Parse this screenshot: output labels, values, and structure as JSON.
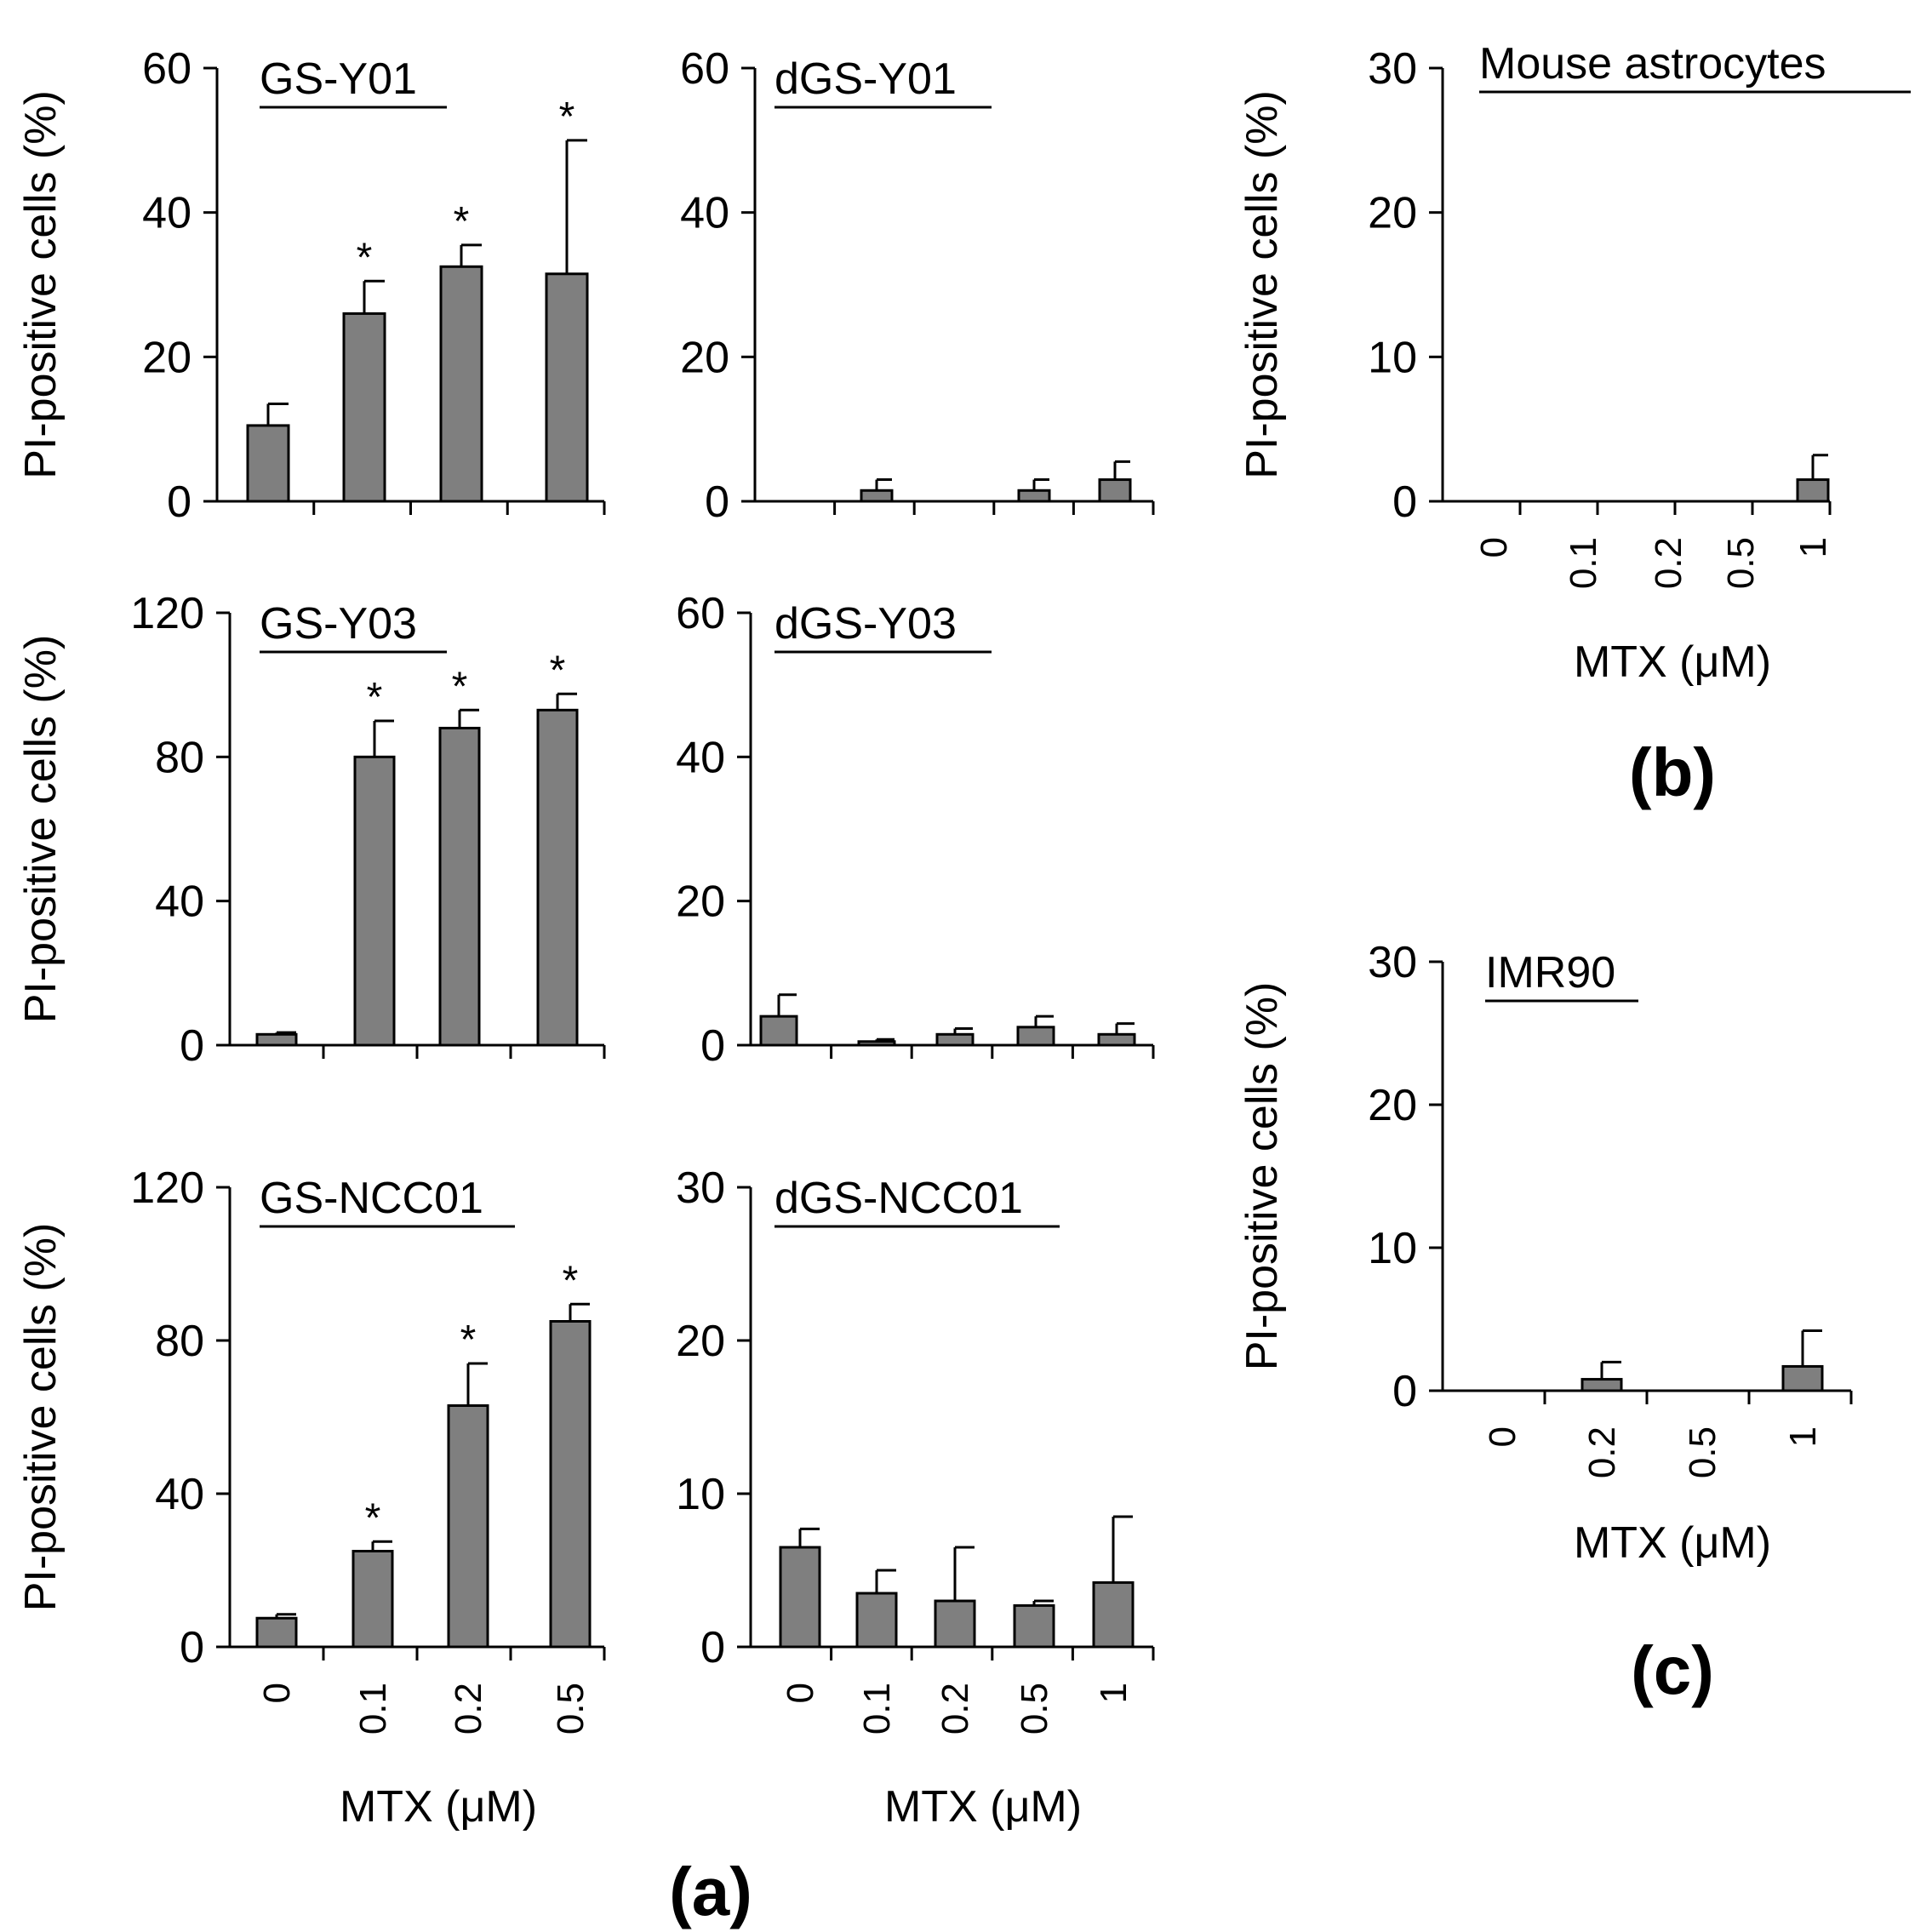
{
  "figure": {
    "panel_labels": {
      "a": "(a)",
      "b": "(b)",
      "c": "(c)"
    },
    "ylabel": "PI-positive cells (%)",
    "xlabel": "MTX  (μM)"
  },
  "colors": {
    "bar": "#7f7f7f",
    "axis": "#000000",
    "background": "#ffffff"
  },
  "chart_data": [
    {
      "id": "gs-y01",
      "type": "bar",
      "title": "GS-Y01",
      "ylabel": "PI-positive cells (%)",
      "xlabel": "",
      "categories": [
        "0",
        "0.1",
        "0.2",
        "0.5"
      ],
      "ylim": [
        0,
        60
      ],
      "yticks": [
        0,
        20,
        40,
        60
      ],
      "values": [
        10.5,
        26,
        32.5,
        31.5
      ],
      "errors": [
        3,
        4.5,
        3,
        18.5
      ],
      "significant": [
        false,
        true,
        true,
        true
      ],
      "annotation": "*"
    },
    {
      "id": "dgs-y01",
      "type": "bar",
      "title": "dGS-Y01",
      "ylabel": "",
      "xlabel": "",
      "categories": [
        "0",
        "0.1",
        "0.2",
        "0.5",
        "1"
      ],
      "ylim": [
        0,
        60
      ],
      "yticks": [
        0,
        20,
        40,
        60
      ],
      "values": [
        0,
        1.5,
        0,
        1.5,
        3
      ],
      "errors": [
        0,
        1.5,
        0,
        1.5,
        2.5
      ],
      "significant": [
        false,
        false,
        false,
        false,
        false
      ],
      "annotation": "*"
    },
    {
      "id": "gs-y03",
      "type": "bar",
      "title": "GS-Y03",
      "ylabel": "PI-positive cells (%)",
      "xlabel": "",
      "categories": [
        "0",
        "0.1",
        "0.2",
        "0.5"
      ],
      "ylim": [
        0,
        120
      ],
      "yticks": [
        0,
        40,
        80,
        120
      ],
      "values": [
        3,
        80,
        88,
        93
      ],
      "errors": [
        0.5,
        10,
        5,
        4.5
      ],
      "significant": [
        false,
        true,
        true,
        true
      ],
      "annotation": "*"
    },
    {
      "id": "dgs-y03",
      "type": "bar",
      "title": "dGS-Y03",
      "ylabel": "",
      "xlabel": "",
      "categories": [
        "0",
        "0.1",
        "0.2",
        "0.5",
        "1"
      ],
      "ylim": [
        0,
        60
      ],
      "yticks": [
        0,
        20,
        40,
        60
      ],
      "values": [
        4,
        0.5,
        1.5,
        2.5,
        1.5
      ],
      "errors": [
        3,
        0.3,
        0.8,
        1.5,
        1.5
      ],
      "significant": [
        false,
        false,
        false,
        false,
        false
      ],
      "annotation": "*"
    },
    {
      "id": "gs-ncc01",
      "type": "bar",
      "title": "GS-NCC01",
      "ylabel": "PI-positive cells (%)",
      "xlabel": "MTX  (μM)",
      "categories": [
        "0",
        "0.1",
        "0.2",
        "0.5"
      ],
      "ylim": [
        0,
        120
      ],
      "yticks": [
        0,
        40,
        80,
        120
      ],
      "values": [
        7.5,
        25,
        63,
        85
      ],
      "errors": [
        1,
        2.5,
        11,
        4.5
      ],
      "significant": [
        false,
        true,
        true,
        true
      ],
      "annotation": "*"
    },
    {
      "id": "dgs-ncc01",
      "type": "bar",
      "title": "dGS-NCC01",
      "ylabel": "",
      "xlabel": "MTX  (μM)",
      "categories": [
        "0",
        "0.1",
        "0.2",
        "0.5",
        "1"
      ],
      "ylim": [
        0,
        30
      ],
      "yticks": [
        0,
        10,
        20,
        30
      ],
      "values": [
        6.5,
        3.5,
        3,
        2.7,
        4.2
      ],
      "errors": [
        1.2,
        1.5,
        3.5,
        0.3,
        4.3
      ],
      "significant": [
        false,
        false,
        false,
        false,
        false
      ],
      "annotation": "*"
    },
    {
      "id": "mouse-astrocytes",
      "type": "bar",
      "title": "Mouse astrocytes",
      "ylabel": "PI-positive cells (%)",
      "xlabel": "MTX  (μM)",
      "categories": [
        "0",
        "0.1",
        "0.2",
        "0.5",
        "1"
      ],
      "ylim": [
        0,
        30
      ],
      "yticks": [
        0,
        10,
        20,
        30
      ],
      "values": [
        0,
        0,
        0,
        0,
        1.5
      ],
      "errors": [
        0,
        0,
        0,
        0,
        1.7
      ],
      "significant": [
        false,
        false,
        false,
        false,
        false
      ],
      "annotation": "*"
    },
    {
      "id": "imr90",
      "type": "bar",
      "title": "IMR90",
      "ylabel": "PI-positive cells (%)",
      "xlabel": "MTX  (μM)",
      "categories": [
        "0",
        "0.2",
        "0.5",
        "1"
      ],
      "ylim": [
        0,
        30
      ],
      "yticks": [
        0,
        10,
        20,
        30
      ],
      "values": [
        0,
        0.8,
        0,
        1.7
      ],
      "errors": [
        0,
        1.2,
        0,
        2.5
      ],
      "significant": [
        false,
        false,
        false,
        false
      ],
      "annotation": "*"
    }
  ]
}
